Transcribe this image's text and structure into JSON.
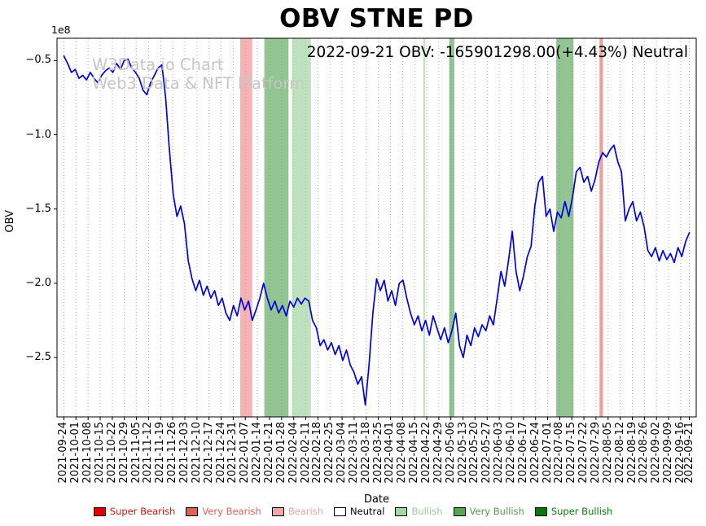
{
  "figure": {
    "annotation": "2022-09-21 OBV: -165901298.00(+4.43%) Neutral",
    "watermark_line1": "W3Data.io Chart",
    "watermark_line2": "Web3 Data & NFT Platform"
  },
  "chart_data": {
    "type": "line",
    "title": "OBV STNE PD",
    "xlabel": "Date",
    "ylabel": "OBV",
    "series_name": "OBV",
    "y_offset_label": "1e8",
    "y_unit": "1e8",
    "ylim": [
      -2.9,
      -0.35
    ],
    "yticks": [
      -0.5,
      -1.0,
      -1.5,
      -2.0,
      -2.5
    ],
    "y_tick_labels": [
      "−0.5",
      "−1.0",
      "−1.5",
      "−2.0",
      "−2.5"
    ],
    "grid": "vertical-dotted",
    "legend_position": "bottom-center",
    "line_color": "#0000e6",
    "x_start": "2021-09-24",
    "x_end": "2022-09-21",
    "x_tick_labels": [
      "2021-09-24",
      "2021-10-01",
      "2021-10-08",
      "2021-10-15",
      "2021-10-22",
      "2021-10-29",
      "2021-11-05",
      "2021-11-12",
      "2021-11-19",
      "2021-11-26",
      "2021-12-03",
      "2021-12-10",
      "2021-12-17",
      "2021-12-24",
      "2021-12-31",
      "2022-01-07",
      "2022-01-14",
      "2022-01-21",
      "2022-01-28",
      "2022-02-04",
      "2022-02-11",
      "2022-02-18",
      "2022-02-25",
      "2022-03-04",
      "2022-03-11",
      "2022-03-18",
      "2022-03-25",
      "2022-04-01",
      "2022-04-08",
      "2022-04-15",
      "2022-04-22",
      "2022-04-29",
      "2022-05-06",
      "2022-05-13",
      "2022-05-20",
      "2022-05-27",
      "2022-06-03",
      "2022-06-10",
      "2022-06-17",
      "2022-06-24",
      "2022-07-01",
      "2022-07-08",
      "2022-07-15",
      "2022-07-22",
      "2022-07-29",
      "2022-08-05",
      "2022-08-12",
      "2022-08-19",
      "2022-08-26",
      "2022-09-02",
      "2022-09-09",
      "2022-09-16",
      "2022-09-21"
    ],
    "values_1e8": [
      -0.47,
      -0.52,
      -0.58,
      -0.56,
      -0.62,
      -0.6,
      -0.63,
      -0.58,
      -0.62,
      -0.65,
      -0.6,
      -0.57,
      -0.55,
      -0.58,
      -0.52,
      -0.56,
      -0.5,
      -0.49,
      -0.55,
      -0.58,
      -0.62,
      -0.7,
      -0.73,
      -0.65,
      -0.6,
      -0.55,
      -0.53,
      -0.75,
      -1.1,
      -1.4,
      -1.55,
      -1.48,
      -1.6,
      -1.85,
      -1.97,
      -2.05,
      -1.98,
      -2.08,
      -2.02,
      -2.1,
      -2.05,
      -2.15,
      -2.1,
      -2.2,
      -2.25,
      -2.15,
      -2.22,
      -2.1,
      -2.18,
      -2.12,
      -2.25,
      -2.18,
      -2.1,
      -2.0,
      -2.1,
      -2.18,
      -2.12,
      -2.2,
      -2.15,
      -2.22,
      -2.12,
      -2.16,
      -2.1,
      -2.14,
      -2.1,
      -2.12,
      -2.25,
      -2.3,
      -2.42,
      -2.38,
      -2.45,
      -2.4,
      -2.48,
      -2.42,
      -2.52,
      -2.45,
      -2.55,
      -2.6,
      -2.68,
      -2.63,
      -2.82,
      -2.55,
      -2.2,
      -1.97,
      -2.05,
      -1.98,
      -2.12,
      -2.05,
      -2.15,
      -2.0,
      -1.98,
      -2.1,
      -2.2,
      -2.28,
      -2.22,
      -2.32,
      -2.25,
      -2.35,
      -2.22,
      -2.3,
      -2.38,
      -2.3,
      -2.4,
      -2.32,
      -2.2,
      -2.42,
      -2.5,
      -2.35,
      -2.42,
      -2.3,
      -2.36,
      -2.28,
      -2.32,
      -2.22,
      -2.28,
      -2.1,
      -1.92,
      -2.02,
      -1.85,
      -1.65,
      -1.92,
      -2.05,
      -1.95,
      -1.82,
      -1.75,
      -1.48,
      -1.32,
      -1.28,
      -1.55,
      -1.5,
      -1.65,
      -1.52,
      -1.56,
      -1.45,
      -1.55,
      -1.42,
      -1.25,
      -1.22,
      -1.32,
      -1.28,
      -1.38,
      -1.3,
      -1.18,
      -1.12,
      -1.15,
      -1.1,
      -1.07,
      -1.18,
      -1.25,
      -1.58,
      -1.5,
      -1.45,
      -1.58,
      -1.52,
      -1.62,
      -1.78,
      -1.82,
      -1.76,
      -1.85,
      -1.78,
      -1.84,
      -1.8,
      -1.86,
      -1.76,
      -1.82,
      -1.72,
      -1.66
    ],
    "signal_bands": [
      {
        "start": "2022-01-04",
        "end": "2022-01-11",
        "category": "Bearish"
      },
      {
        "start": "2022-01-18",
        "end": "2022-02-01",
        "category": "Very Bullish"
      },
      {
        "start": "2022-02-03",
        "end": "2022-02-14",
        "category": "Bullish"
      },
      {
        "start": "2022-04-20",
        "end": "2022-04-21",
        "category": "Bullish"
      },
      {
        "start": "2022-05-05",
        "end": "2022-05-08",
        "category": "Very Bullish"
      },
      {
        "start": "2022-07-06",
        "end": "2022-07-16",
        "category": "Very Bullish"
      },
      {
        "start": "2022-07-31",
        "end": "2022-08-02",
        "category": "Very Bearish"
      }
    ],
    "category_colors": {
      "Super Bearish": "#e00000",
      "Very Bearish": "#e0605a",
      "Bearish": "#f08080",
      "Neutral": "#ffffff",
      "Bullish": "#93ce93",
      "Very Bullish": "#4a9e4a",
      "Super Bullish": "#067806"
    },
    "legend": [
      {
        "label": "Super Bearish",
        "color": "#e00000",
        "text_color": "#dd1111"
      },
      {
        "label": "Very Bearish",
        "color": "#e0605a",
        "text_color": "#e0605a"
      },
      {
        "label": "Bearish",
        "color": "#f4a6a6",
        "text_color": "#efa0a0"
      },
      {
        "label": "Neutral",
        "color": "#ffffff",
        "text_color": "#000000"
      },
      {
        "label": "Bullish",
        "color": "#a5d6a5",
        "text_color": "#9ccc9c"
      },
      {
        "label": "Very Bullish",
        "color": "#55a555",
        "text_color": "#4f9f4f"
      },
      {
        "label": "Super Bullish",
        "color": "#067806",
        "text_color": "#077d07"
      }
    ]
  }
}
